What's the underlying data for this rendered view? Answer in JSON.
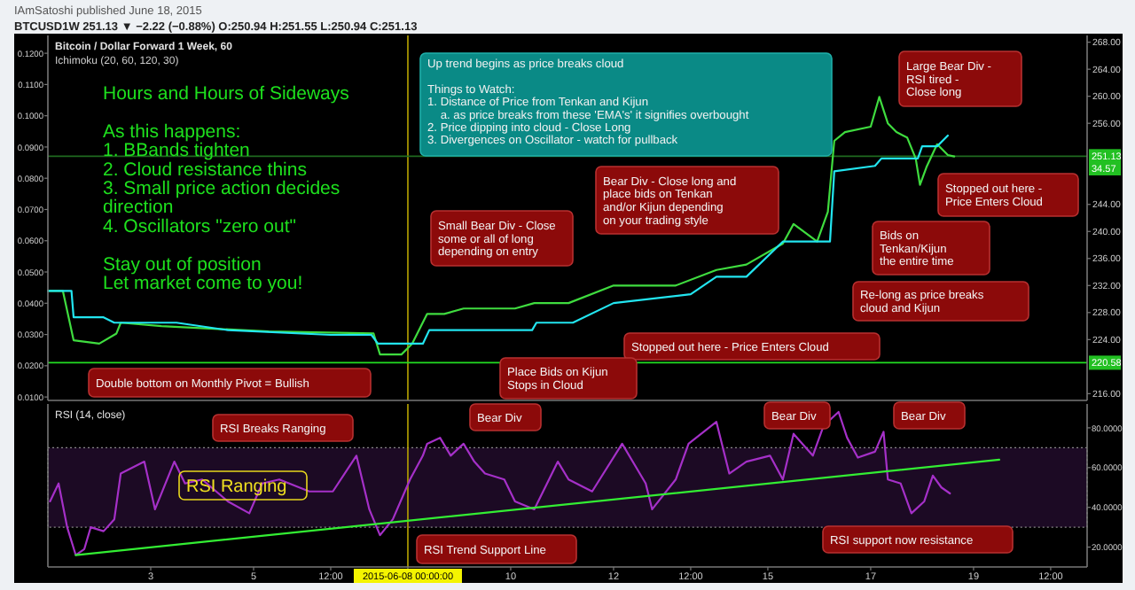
{
  "chart_data": [
    {
      "type": "line",
      "title": "Bitcoin / Dollar Forward 1 Week, 60",
      "subtitle": "Ichimoku (20, 60, 120, 30)",
      "xlim": [
        "2015-06-01T00:00",
        "2015-06-21T05:00"
      ],
      "ylim": [
        0.0089,
        0.1257
      ],
      "yticks": [
        {
          "value": 0.01,
          "label": "0.0100"
        },
        {
          "value": 0.02,
          "label": "0.0200"
        },
        {
          "value": 0.03,
          "label": "0.0300"
        },
        {
          "value": 0.04,
          "label": "0.0400"
        },
        {
          "value": 0.05,
          "label": "0.0500"
        },
        {
          "value": 0.06,
          "label": "0.0600"
        },
        {
          "value": 0.07,
          "label": "0.0700"
        },
        {
          "value": 0.08,
          "label": "0.0800"
        },
        {
          "value": 0.09,
          "label": "0.0900"
        },
        {
          "value": 0.1,
          "label": "0.1000"
        },
        {
          "value": 0.11,
          "label": "0.1100"
        },
        {
          "value": 0.12,
          "label": "0.1200"
        }
      ],
      "y2lim": [
        215,
        269
      ],
      "y2ticks": [
        {
          "value": 216,
          "label": "216.00"
        },
        {
          "value": 224,
          "label": "224.00"
        },
        {
          "value": 228,
          "label": "228.00"
        },
        {
          "value": 232,
          "label": "232.00"
        },
        {
          "value": 236,
          "label": "236.00"
        },
        {
          "value": 240,
          "label": "240.00"
        },
        {
          "value": 244,
          "label": "244.00"
        },
        {
          "value": 256,
          "label": "256.00"
        },
        {
          "value": 260,
          "label": "260.00"
        },
        {
          "value": 264,
          "label": "264.00"
        },
        {
          "value": 268,
          "label": "268.00"
        }
      ],
      "tick_labels": "y",
      "grid": false,
      "marker": "none",
      "series": [
        {
          "color": "#3fdc3f",
          "axis": "y2",
          "x": [
            "2015-06-01T00:00",
            "2015-06-01T07:00",
            "2015-06-01T12:00",
            "2015-06-02T00:00",
            "2015-06-02T08:00",
            "2015-06-02T10:00",
            "2015-06-03T05:00",
            "2015-06-05T07:00",
            "2015-06-07T08:00",
            "2015-06-07T11:00",
            "2015-06-07T21:00",
            "2015-06-08T02:00",
            "2015-06-08T09:00",
            "2015-06-08T17:00",
            "2015-06-09T02:00",
            "2015-06-10T02:00",
            "2015-06-10T11:00",
            "2015-06-11T03:00",
            "2015-06-12T00:00",
            "2015-06-13T05:00",
            "2015-06-14T00:00",
            "2015-06-14T14:00",
            "2015-06-15T07:00",
            "2015-06-15T12:00",
            "2015-06-15T23:00",
            "2015-06-16T04:00",
            "2015-06-16T07:00",
            "2015-06-16T12:00",
            "2015-06-17T00:00",
            "2015-06-17T04:00",
            "2015-06-17T08:00",
            "2015-06-17T12:00",
            "2015-06-17T17:00",
            "2015-06-17T21:00",
            "2015-06-17T23:00",
            "2015-06-18T02:00",
            "2015-06-18T07:00",
            "2015-06-18T12:00",
            "2015-06-18T15:00"
          ],
          "values": [
            231.2,
            231.2,
            223.9,
            223.4,
            224.9,
            226.5,
            226.0,
            225.2,
            224.9,
            221.8,
            221.8,
            223.4,
            227.8,
            227.8,
            228.6,
            228.6,
            229.4,
            229.4,
            232.0,
            232.0,
            234.3,
            235.1,
            238.2,
            241.1,
            238.5,
            242.9,
            253.4,
            254.7,
            255.5,
            259.9,
            256.0,
            254.7,
            253.9,
            250.8,
            246.9,
            249.5,
            252.9,
            251.3,
            251.1
          ]
        },
        {
          "color": "#22e5f0",
          "axis": "y2",
          "x": [
            "2015-06-01T00:00",
            "2015-06-01T11:00",
            "2015-06-01T12:00",
            "2015-06-02T02:00",
            "2015-06-02T07:00",
            "2015-06-03T12:00",
            "2015-06-04T12:00",
            "2015-06-06T12:00",
            "2015-06-07T07:00",
            "2015-06-07T10:00",
            "2015-06-08T07:00",
            "2015-06-08T10:00",
            "2015-06-10T10:00",
            "2015-06-10T12:00",
            "2015-06-11T05:00",
            "2015-06-12T00:00",
            "2015-06-13T12:00",
            "2015-06-14T00:00",
            "2015-06-14T14:00",
            "2015-06-15T07:00",
            "2015-06-16T05:00",
            "2015-06-16T07:00",
            "2015-06-17T02:00",
            "2015-06-17T05:00",
            "2015-06-17T22:00",
            "2015-06-18T00:00",
            "2015-06-18T07:00",
            "2015-06-18T12:00"
          ],
          "values": [
            231.2,
            231.2,
            227.3,
            227.3,
            226.5,
            226.5,
            225.4,
            224.7,
            224.7,
            223.4,
            223.4,
            225.4,
            225.4,
            226.5,
            226.5,
            229.4,
            230.7,
            233.3,
            233.3,
            238.5,
            238.5,
            248.9,
            249.7,
            250.8,
            250.8,
            252.6,
            252.6,
            254.2
          ]
        }
      ],
      "ref_lines": [
        {
          "axis": "x",
          "value": "2015-06-08",
          "color": "#b8a400"
        },
        {
          "axis": "y2",
          "value": 251.13,
          "label": "251.13",
          "color": "#1f6a1f"
        },
        {
          "axis": "y2",
          "value": 220.58,
          "label": "220.58",
          "color": "#22dd22"
        }
      ],
      "annotations": [
        "IAmSatoshi published June 18, 2015",
        "BTCUSD1W 251.13 ▼ −2.22 (−0.88%) O:250.94 H:251.55 L:250.94 C:251.13",
        "Hours and Hours of Sideways\n\nAs this happens:\n1. BBands tighten\n2. Cloud resistance thins\n3. Small price action decides\ndirection\n4. Oscillators \"zero out\"\n\nStay out of position\nLet market come to you!",
        "Up trend begins as price breaks cloud\n\nThings to Watch:\n1. Distance of Price from Tenkan and Kijun\n    a. as price breaks from these 'EMA's' it signifies overbought\n2. Price dipping into cloud - Close Long\n3. Divergences on Oscillator - watch for pullback",
        "Small Bear Div - Close\nsome or all of long\ndepending on entry",
        "Bear Div - Close long and\nplace bids on Tenkan\nand/or Kijun depending\non your trading style",
        "Large Bear Div -\nRSI tired -\nClose long",
        "Stopped out here -\nPrice Enters Cloud",
        "Bids on\nTenkan/Kijun\nthe entire time",
        "Re-long as price breaks\ncloud and Kijun",
        "Stopped out here - Price Enters Cloud",
        "Place Bids on Kijun\nStops in Cloud",
        "Double bottom on Monthly Pivot = Bullish",
        "34.57"
      ]
    },
    {
      "type": "line",
      "title": "RSI (14, close)",
      "xlim": [
        "2015-06-01T00:00",
        "2015-06-21T05:00"
      ],
      "xticks": [
        {
          "value": "2015-06-03",
          "label": "3"
        },
        {
          "value": "2015-06-05",
          "label": "5"
        },
        {
          "value": "2015-06-06T12:00",
          "label": "12:00"
        },
        {
          "value": "2015-06-08",
          "label": "2015-06-08 00:00:00"
        },
        {
          "value": "2015-06-10",
          "label": "10"
        },
        {
          "value": "2015-06-12",
          "label": "12"
        },
        {
          "value": "2015-06-13T12:00",
          "label": "12:00"
        },
        {
          "value": "2015-06-15",
          "label": "15"
        },
        {
          "value": "2015-06-17",
          "label": "17"
        },
        {
          "value": "2015-06-19",
          "label": "19"
        },
        {
          "value": "2015-06-20T12:00",
          "label": "12:00"
        }
      ],
      "ylim": [
        10,
        92
      ],
      "yticks": [
        {
          "value": 20,
          "label": "20.0000"
        },
        {
          "value": 40,
          "label": "40.0000"
        },
        {
          "value": 60,
          "label": "60.0000"
        },
        {
          "value": 80,
          "label": "80.0000"
        }
      ],
      "grid": false,
      "marker": "none",
      "series": [
        {
          "color": "#a530c8",
          "x": [
            "2015-06-01T01:00",
            "2015-06-01T05:00",
            "2015-06-01T09:00",
            "2015-06-01T13:00",
            "2015-06-01T17:00",
            "2015-06-01T20:00",
            "2015-06-02T02:00",
            "2015-06-02T07:00",
            "2015-06-02T10:00",
            "2015-06-02T21:00",
            "2015-06-03T02:00",
            "2015-06-03T11:00",
            "2015-06-03T16:00",
            "2015-06-04T00:00",
            "2015-06-04T12:00",
            "2015-06-04T22:00",
            "2015-06-05T04:00",
            "2015-06-05T12:00",
            "2015-06-06T02:00",
            "2015-06-06T13:00",
            "2015-06-07T00:00",
            "2015-06-07T06:00",
            "2015-06-07T11:00",
            "2015-06-07T17:00",
            "2015-06-08T01:00",
            "2015-06-08T07:00",
            "2015-06-08T09:00",
            "2015-06-08T15:00",
            "2015-06-08T20:00",
            "2015-06-09T02:00",
            "2015-06-09T07:00",
            "2015-06-09T12:00",
            "2015-06-09T21:00",
            "2015-06-10T02:00",
            "2015-06-10T11:00",
            "2015-06-10T22:00",
            "2015-06-11T03:00",
            "2015-06-11T14:00",
            "2015-06-12T04:00",
            "2015-06-12T15:00",
            "2015-06-12T18:00",
            "2015-06-13T05:00",
            "2015-06-13T11:00",
            "2015-06-14T00:00",
            "2015-06-14T06:00",
            "2015-06-14T14:00",
            "2015-06-15T01:00",
            "2015-06-15T07:00",
            "2015-06-15T12:00",
            "2015-06-15T21:00",
            "2015-06-16T02:00",
            "2015-06-16T09:00",
            "2015-06-16T13:00",
            "2015-06-16T18:00",
            "2015-06-17T02:00",
            "2015-06-17T06:00",
            "2015-06-17T08:00",
            "2015-06-17T14:00",
            "2015-06-17T19:00",
            "2015-06-18T01:00",
            "2015-06-18T05:00",
            "2015-06-18T09:00",
            "2015-06-18T13:00"
          ],
          "values": [
            43,
            52,
            30,
            16,
            19,
            30,
            28,
            34,
            57,
            63,
            39,
            63,
            52,
            54,
            43,
            37,
            52,
            54,
            48,
            48,
            66,
            39,
            26,
            34,
            54,
            66,
            72,
            75,
            66,
            72,
            63,
            57,
            54,
            43,
            39,
            63,
            54,
            48,
            72,
            52,
            39,
            54,
            72,
            83,
            57,
            63,
            66,
            54,
            77,
            66,
            81,
            88,
            75,
            65,
            68,
            78,
            54,
            52,
            37,
            43,
            56,
            50,
            47
          ]
        },
        {
          "color": "#33ee33",
          "x": [
            "2015-06-01T13:00",
            "2015-06-19T12:00"
          ],
          "values": [
            16,
            64
          ]
        }
      ],
      "bands": [
        {
          "axis": "y",
          "from": 30,
          "to": 70,
          "color": "#1c0a24"
        }
      ],
      "ref_lines": [
        {
          "axis": "x",
          "value": "2015-06-08",
          "color": "#b8a400"
        }
      ],
      "annotations": [
        "RSI Breaks Ranging",
        "Bear Div",
        "RSI Ranging",
        "RSI Trend Support Line",
        "Bear Div",
        "Bear Div",
        "RSI support now resistance"
      ]
    }
  ]
}
